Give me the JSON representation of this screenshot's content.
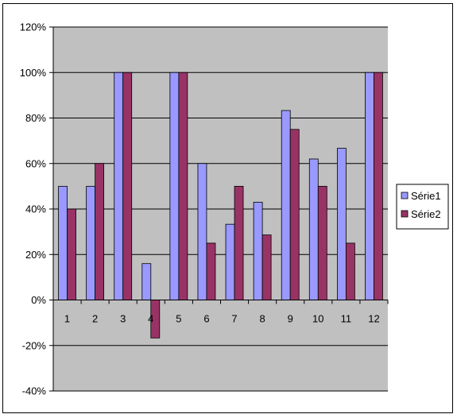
{
  "chart_data": {
    "type": "bar",
    "categories": [
      "1",
      "2",
      "3",
      "4",
      "5",
      "6",
      "7",
      "8",
      "9",
      "10",
      "11",
      "12"
    ],
    "series": [
      {
        "name": "Série1",
        "values": [
          50,
          50,
          100,
          16,
          100,
          60,
          33.3,
          43,
          83.3,
          62,
          66.7,
          100
        ],
        "color": "#9999ff"
      },
      {
        "name": "Série2",
        "values": [
          40,
          60,
          100,
          -16.7,
          100,
          25,
          50,
          28.6,
          75,
          50,
          25,
          100
        ],
        "color": "#993366"
      }
    ],
    "ylim": [
      -40,
      120
    ],
    "yticks": [
      "-40%",
      "-20%",
      "0%",
      "20%",
      "40%",
      "60%",
      "80%",
      "100%",
      "120%"
    ],
    "ytick_values": [
      -40,
      -20,
      0,
      20,
      40,
      60,
      80,
      100,
      120
    ],
    "grid": true,
    "legend": "right",
    "plot_bg": "#c0c0c0"
  }
}
